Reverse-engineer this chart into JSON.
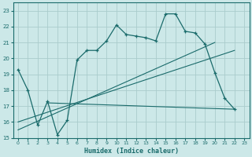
{
  "title": "",
  "xlabel": "Humidex (Indice chaleur)",
  "bg_color": "#cce8e8",
  "line_color": "#1a6b6b",
  "grid_color": "#b8d8d8",
  "xlim": [
    -0.5,
    23.5
  ],
  "ylim": [
    15,
    23.5
  ],
  "yticks": [
    15,
    16,
    17,
    18,
    19,
    20,
    21,
    22,
    23
  ],
  "xticks": [
    0,
    1,
    2,
    3,
    4,
    5,
    6,
    7,
    8,
    9,
    10,
    11,
    12,
    13,
    14,
    15,
    16,
    17,
    18,
    19,
    20,
    21,
    22,
    23
  ],
  "line1_x": [
    0,
    1,
    2,
    3,
    4,
    5,
    6,
    7,
    8,
    9,
    10,
    11,
    12,
    13,
    14,
    15,
    16,
    17,
    18,
    19,
    20,
    21,
    22
  ],
  "line1_y": [
    19.3,
    18.0,
    15.8,
    17.3,
    15.2,
    16.1,
    19.9,
    20.5,
    20.5,
    21.1,
    22.1,
    21.5,
    21.4,
    21.3,
    21.1,
    22.8,
    22.8,
    21.7,
    21.6,
    20.9,
    19.1,
    17.5,
    16.8
  ],
  "line2_x": [
    0,
    20
  ],
  "line2_y": [
    15.5,
    21.0
  ],
  "line3_x": [
    0,
    22
  ],
  "line3_y": [
    16.0,
    20.5
  ],
  "line4_x": [
    3,
    22
  ],
  "line4_y": [
    17.2,
    16.8
  ]
}
